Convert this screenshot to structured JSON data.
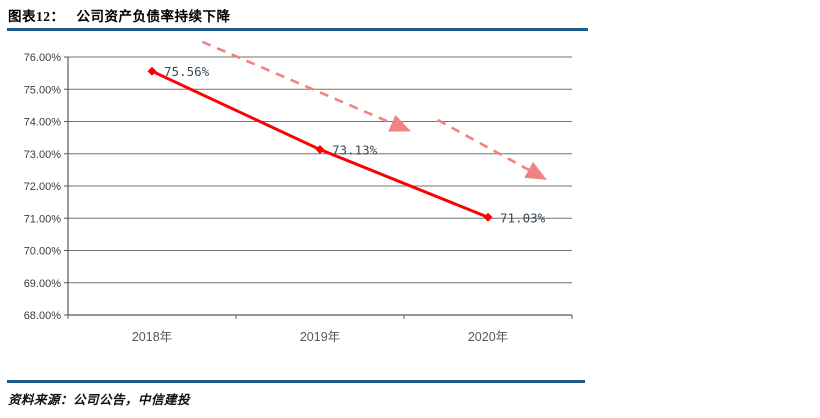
{
  "header": {
    "title_prefix": "图表12：",
    "title_text": "公司资产负债率持续下降"
  },
  "footer": {
    "source_label": "资料来源：",
    "source_text": "公司公告，中信建投"
  },
  "colors": {
    "accent_blue": "#1e5c8c",
    "line_red": "#ff0000",
    "arrow_pink": "#f08282",
    "gridline": "#737373",
    "axis": "#595959",
    "tick_label": "#3c3c3c",
    "x_label": "#595959",
    "data_label": "#3d4b59"
  },
  "chart_data": {
    "type": "line",
    "title": "公司资产负债率持续下降",
    "categories": [
      "2018年",
      "2019年",
      "2020年"
    ],
    "series": [
      {
        "name": "",
        "values": [
          75.56,
          73.13,
          71.03
        ]
      }
    ],
    "data_labels": [
      "75.56%",
      "73.13%",
      "71.03%"
    ],
    "y_ticks": [
      "76.00%",
      "75.00%",
      "74.00%",
      "73.00%",
      "72.00%",
      "71.00%",
      "70.00%",
      "69.00%",
      "68.00%"
    ],
    "ylim": [
      68,
      76
    ],
    "xlabel": "",
    "ylabel": "",
    "grid": "horizontal",
    "legend": "none",
    "annotations": [
      {
        "type": "dashed-arrow",
        "from": [
          0.3,
          76.47
        ],
        "to": [
          1.52,
          73.74
        ]
      },
      {
        "type": "dashed-arrow",
        "from": [
          1.7,
          74.05
        ],
        "to": [
          2.33,
          72.25
        ]
      }
    ]
  }
}
